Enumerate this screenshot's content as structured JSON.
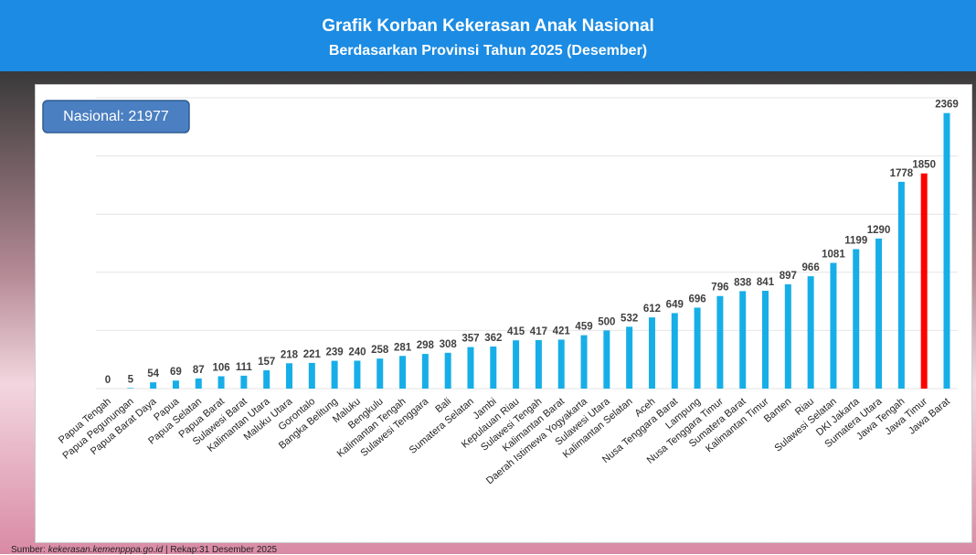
{
  "header": {
    "title": "Grafik Korban Kekerasan Anak Nasional",
    "subtitle": "Berdasarkan Provinsi Tahun 2025 (Desember)"
  },
  "chart_data": {
    "type": "bar",
    "annotation": "Nasional: 21977",
    "categories": [
      "Papua Tengah",
      "Papua Pegunungan",
      "Papua Barat Daya",
      "Papua",
      "Papua Selatan",
      "Papua Barat",
      "Sulawesi Barat",
      "Kalimantan Utara",
      "Maluku Utara",
      "Gorontalo",
      "Bangka Belitung",
      "Maluku",
      "Bengkulu",
      "Kalimantan Tengah",
      "Sulawesi Tenggara",
      "Bali",
      "Sumatera Selatan",
      "Jambi",
      "Kepulauan Riau",
      "Sulawesi Tengah",
      "Kalimantan Barat",
      "Daerah Istimewa Yogyakarta",
      "Sulawesi Utara",
      "Kalimantan Selatan",
      "Aceh",
      "Nusa Tenggara Barat",
      "Lampung",
      "Nusa Tenggara Timur",
      "Sumatera Barat",
      "Kalimantan Timur",
      "Banten",
      "Riau",
      "Sulawesi Selatan",
      "DKI Jakarta",
      "Sumatera Utara",
      "Jawa Tengah",
      "Jawa Timur",
      "Jawa Barat"
    ],
    "values": [
      0,
      5,
      54,
      69,
      87,
      106,
      111,
      157,
      218,
      221,
      239,
      240,
      258,
      281,
      298,
      308,
      357,
      362,
      415,
      417,
      421,
      459,
      500,
      532,
      612,
      649,
      696,
      796,
      838,
      841,
      897,
      966,
      1081,
      1199,
      1290,
      1778,
      1850,
      2369
    ],
    "colors": [
      "#17aee8",
      "#17aee8",
      "#17aee8",
      "#17aee8",
      "#17aee8",
      "#17aee8",
      "#17aee8",
      "#17aee8",
      "#17aee8",
      "#17aee8",
      "#17aee8",
      "#17aee8",
      "#17aee8",
      "#17aee8",
      "#17aee8",
      "#17aee8",
      "#17aee8",
      "#17aee8",
      "#17aee8",
      "#17aee8",
      "#17aee8",
      "#17aee8",
      "#17aee8",
      "#17aee8",
      "#17aee8",
      "#17aee8",
      "#17aee8",
      "#17aee8",
      "#17aee8",
      "#17aee8",
      "#17aee8",
      "#17aee8",
      "#17aee8",
      "#17aee8",
      "#17aee8",
      "#17aee8",
      "#ff0000",
      "#17aee8"
    ],
    "ylim": [
      0,
      2500
    ],
    "yticks": [
      0,
      500,
      1000,
      1500,
      2000,
      2500
    ],
    "grid": true
  },
  "source": {
    "label": "Sumber:",
    "site": "kekerasan.kemenpppa.go.id",
    "note": "| Rekap:31 Desember 2025"
  }
}
